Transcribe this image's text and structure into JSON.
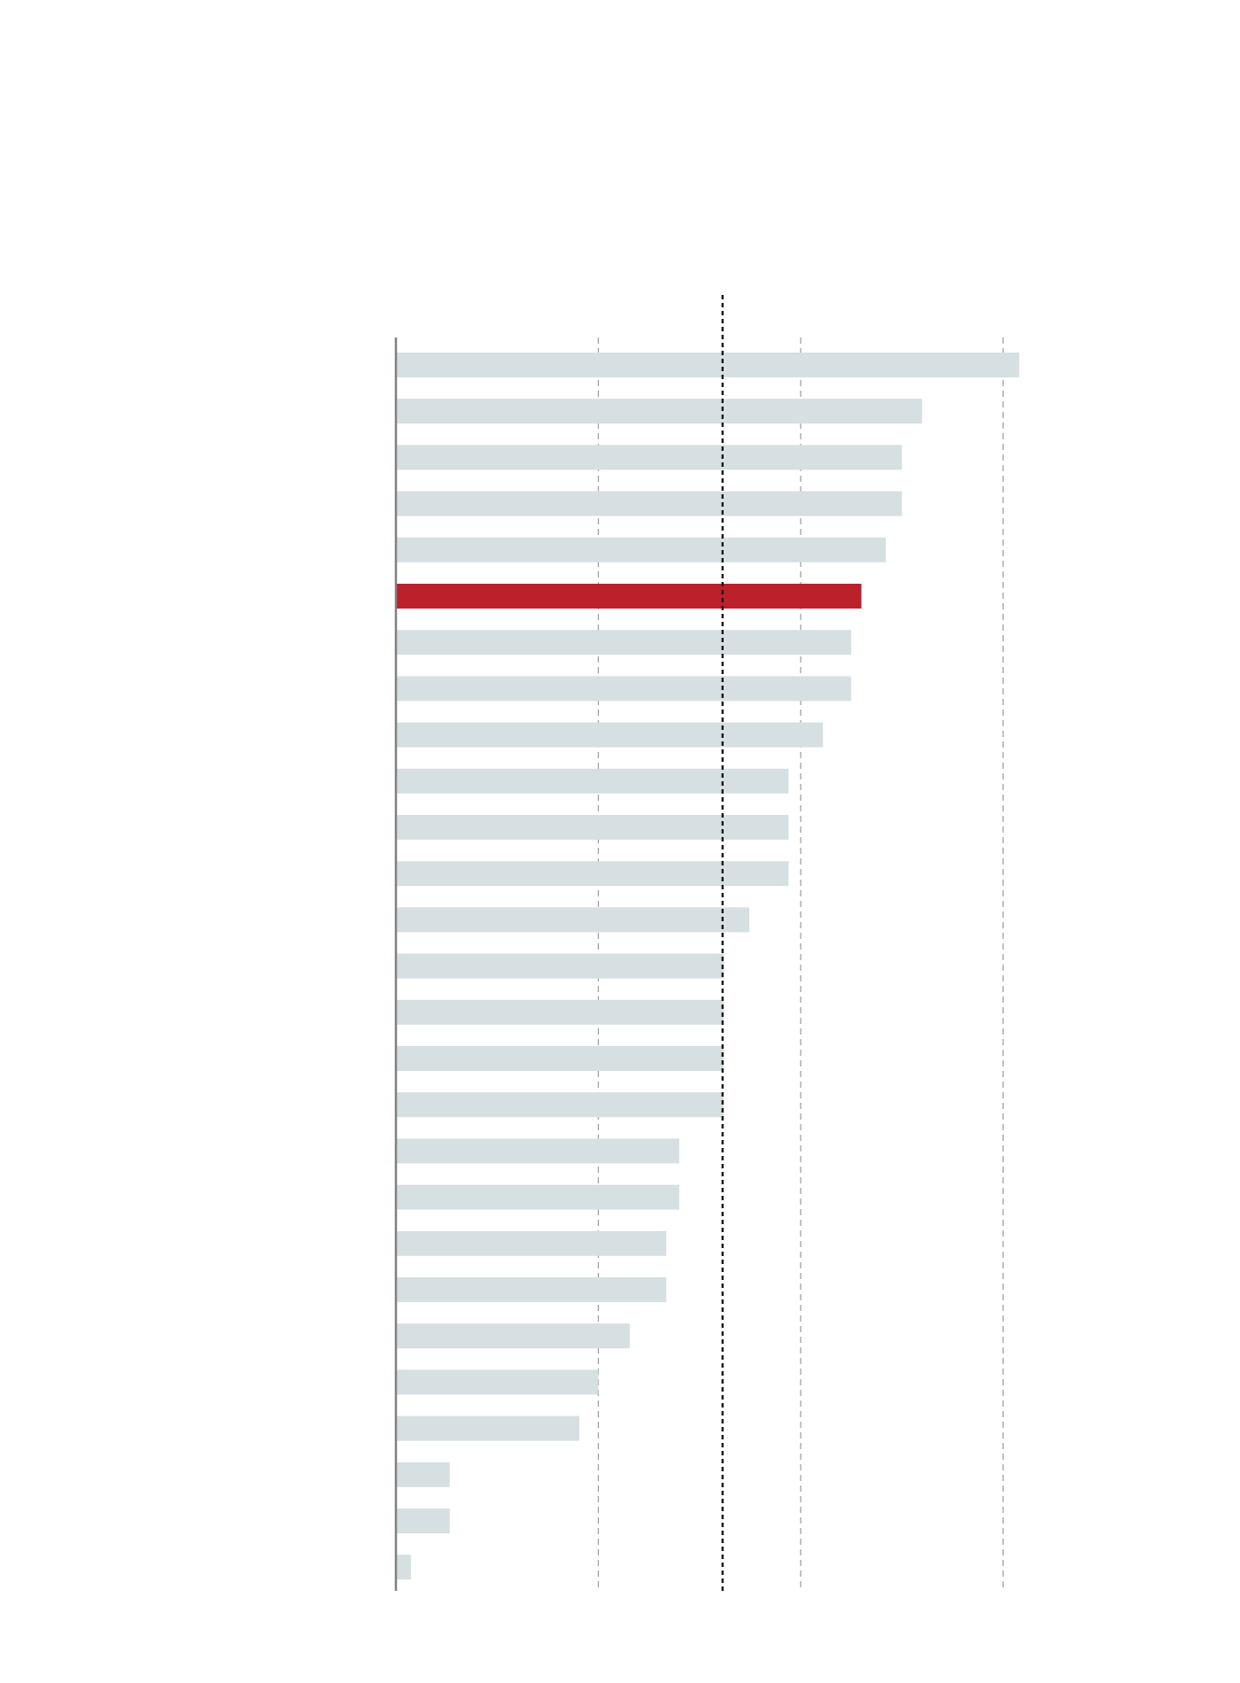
{
  "chart_data": {
    "type": "bar",
    "orientation": "horizontal",
    "title": "",
    "xlabel": "",
    "ylabel": "",
    "values": [
      15.4,
      13.0,
      12.5,
      12.5,
      12.1,
      11.5,
      11.25,
      11.25,
      10.55,
      9.7,
      9.7,
      9.7,
      8.73,
      8.1,
      8.1,
      8.1,
      8.1,
      7.0,
      7.0,
      6.68,
      6.68,
      5.78,
      5.0,
      4.53,
      1.33,
      1.33,
      0.37
    ],
    "highlight_index": 5,
    "xlim": [
      0,
      16
    ],
    "gridlines": [
      5,
      10,
      15
    ],
    "reference_line": 8.07,
    "grid": true,
    "colors": {
      "bar": "#d6dfe1",
      "highlight": "#ba212b",
      "grid": "#9a9a9a",
      "reference": "#1a1a1a",
      "axis": "#808080"
    }
  }
}
